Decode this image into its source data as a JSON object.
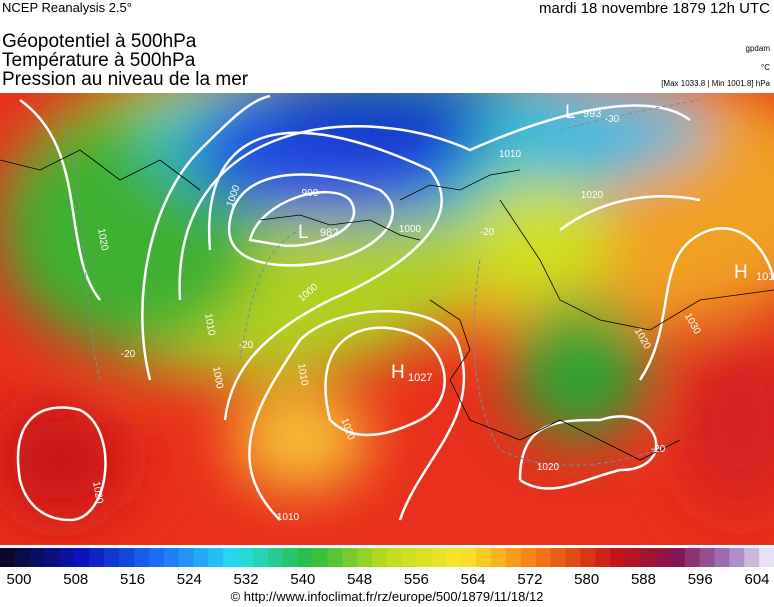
{
  "header": {
    "source": "NCEP Reanalysis 2.5°",
    "date": "mardi 18 novembre 1879 12h UTC"
  },
  "titles": [
    "Géopotentiel à 500hPa",
    "Température à 500hPa",
    "Pression au niveau de la mer"
  ],
  "units": [
    "gpdam",
    "°C",
    "[Max 1033.8 | Min 1001.8] hPa"
  ],
  "map": {
    "labels": [
      "1010",
      "1000",
      "990",
      "982",
      "1000",
      "-20",
      "1020",
      "1000",
      "1010",
      "-20",
      "-20",
      "1000",
      "1010",
      "1027",
      "1020",
      "1030",
      "1020",
      "1020",
      "1020",
      "1010",
      "993",
      "-30",
      "1020",
      "1010",
      "-20"
    ],
    "centers": [
      "L",
      "H",
      "L",
      "H"
    ]
  },
  "colorbar": {
    "ticks": [
      500,
      508,
      516,
      524,
      532,
      540,
      548,
      556,
      564,
      572,
      580,
      588,
      596,
      604
    ]
  },
  "footer": "© http://www.infoclimat.fr/rz/europe/500/1879/11/18/12"
}
